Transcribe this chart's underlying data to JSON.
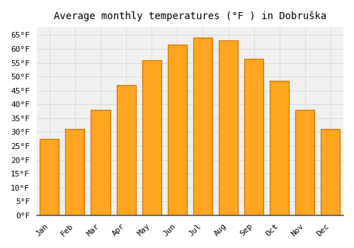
{
  "title": "Average monthly temperatures (°F ) in Dobruška",
  "months": [
    "Jan",
    "Feb",
    "Mar",
    "Apr",
    "May",
    "Jun",
    "Jul",
    "Aug",
    "Sep",
    "Oct",
    "Nov",
    "Dec"
  ],
  "values": [
    27.5,
    31.0,
    38.0,
    47.0,
    56.0,
    61.5,
    64.0,
    63.0,
    56.5,
    48.5,
    38.0,
    31.0
  ],
  "bar_color": "#FFA520",
  "bar_edge_color": "#C87000",
  "background_color": "#ffffff",
  "plot_bg_color": "#f0f0f0",
  "grid_color": "#d8d8d8",
  "ylim": [
    0,
    68
  ],
  "yticks": [
    0,
    5,
    10,
    15,
    20,
    25,
    30,
    35,
    40,
    45,
    50,
    55,
    60,
    65
  ],
  "title_fontsize": 10,
  "tick_fontsize": 8,
  "font_family": "monospace"
}
